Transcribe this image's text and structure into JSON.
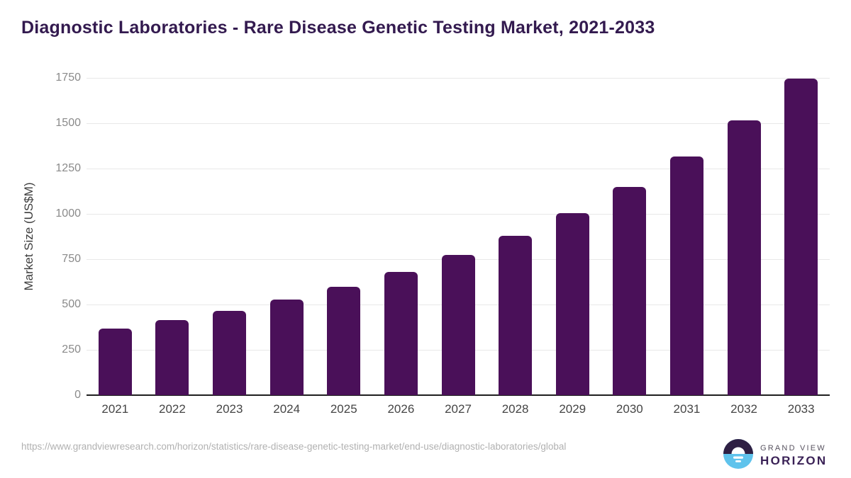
{
  "title": "Diagnostic Laboratories - Rare Disease Genetic Testing Market, 2021-2033",
  "chart_data": {
    "type": "bar",
    "categories": [
      "2021",
      "2022",
      "2023",
      "2024",
      "2025",
      "2026",
      "2027",
      "2028",
      "2029",
      "2030",
      "2031",
      "2032",
      "2033"
    ],
    "values": [
      366,
      415,
      466,
      528,
      598,
      680,
      773,
      878,
      1005,
      1150,
      1315,
      1516,
      1745
    ],
    "title": "Diagnostic Laboratories - Rare Disease Genetic Testing Market, 2021-2033",
    "xlabel": "",
    "ylabel": "Market Size (US$M)",
    "ylim": [
      0,
      1750
    ],
    "yticks": [
      0,
      250,
      500,
      750,
      1000,
      1250,
      1500,
      1750
    ],
    "grid": "horizontal",
    "legend": "none",
    "bar_color": "#4a1059"
  },
  "footer": {
    "source_url": "https://www.grandviewresearch.com/horizon/statistics/rare-disease-genetic-testing-market/end-use/diagnostic-laboratories/global",
    "logo": {
      "line1": "GRAND VIEW",
      "line2": "HORIZON"
    }
  },
  "colors": {
    "bar": "#4a1059",
    "title": "#331a4f",
    "axis_line": "#1f1f1f",
    "gridline": "#e8e8e8",
    "y_tick_text": "#8a8a8a",
    "x_tick_text": "#454545",
    "url_text": "#b1b1b1",
    "logo_purple": "#2f2044",
    "logo_blue": "#5fc3ec"
  }
}
